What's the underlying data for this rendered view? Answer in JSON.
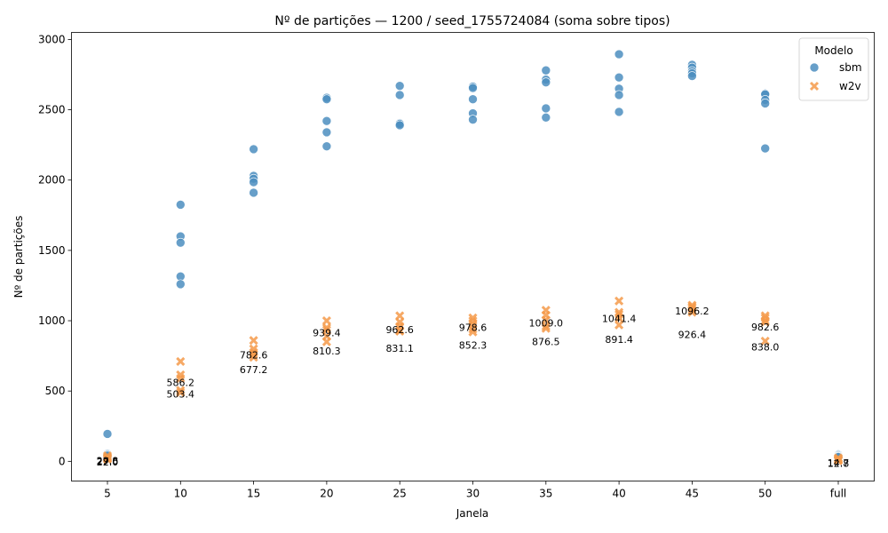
{
  "chart_data": {
    "type": "scatter",
    "title": "Nº de partições — 1200 / seed_1755724084 (soma sobre tipos)",
    "xlabel": "Janela",
    "ylabel": "Nº de partições",
    "x_categories": [
      "5",
      "10",
      "15",
      "20",
      "25",
      "30",
      "35",
      "40",
      "45",
      "50",
      "full"
    ],
    "ylim": [
      -140,
      3050
    ],
    "yticks": [
      0,
      500,
      1000,
      1500,
      2000,
      2500,
      3000
    ],
    "grid": false,
    "legend": {
      "title": "Modelo",
      "position": "top-right"
    },
    "series": [
      {
        "name": "sbm",
        "color": "#4c8ec0",
        "marker": "circle",
        "points": [
          [
            "5",
            195
          ],
          [
            "5",
            55
          ],
          [
            "5",
            50
          ],
          [
            "5",
            45
          ],
          [
            "5",
            40
          ],
          [
            "10",
            1825
          ],
          [
            "10",
            1600
          ],
          [
            "10",
            1555
          ],
          [
            "10",
            1315
          ],
          [
            "10",
            1260
          ],
          [
            "15",
            2220
          ],
          [
            "15",
            2030
          ],
          [
            "15",
            2010
          ],
          [
            "15",
            1985
          ],
          [
            "15",
            1910
          ],
          [
            "20",
            2585
          ],
          [
            "20",
            2575
          ],
          [
            "20",
            2420
          ],
          [
            "20",
            2340
          ],
          [
            "20",
            2240
          ],
          [
            "25",
            2670
          ],
          [
            "25",
            2605
          ],
          [
            "25",
            2405
          ],
          [
            "25",
            2400
          ],
          [
            "25",
            2390
          ],
          [
            "30",
            2665
          ],
          [
            "30",
            2655
          ],
          [
            "30",
            2575
          ],
          [
            "30",
            2475
          ],
          [
            "30",
            2430
          ],
          [
            "35",
            2780
          ],
          [
            "35",
            2715
          ],
          [
            "35",
            2695
          ],
          [
            "35",
            2510
          ],
          [
            "35",
            2445
          ],
          [
            "40",
            2895
          ],
          [
            "40",
            2730
          ],
          [
            "40",
            2650
          ],
          [
            "40",
            2605
          ],
          [
            "40",
            2485
          ],
          [
            "45",
            2820
          ],
          [
            "45",
            2800
          ],
          [
            "45",
            2775
          ],
          [
            "45",
            2760
          ],
          [
            "45",
            2740
          ],
          [
            "50",
            2615
          ],
          [
            "50",
            2610
          ],
          [
            "50",
            2570
          ],
          [
            "50",
            2545
          ],
          [
            "50",
            2225
          ],
          [
            "full",
            50
          ],
          [
            "full",
            45
          ],
          [
            "full",
            40
          ],
          [
            "full",
            35
          ],
          [
            "full",
            30
          ]
        ]
      },
      {
        "name": "w2v",
        "color": "#f59a4a",
        "marker": "x",
        "points": [
          [
            "5",
            40
          ],
          [
            "5",
            30
          ],
          [
            "5",
            25
          ],
          [
            "5",
            20
          ],
          [
            "5",
            15
          ],
          [
            "10",
            710
          ],
          [
            "10",
            615
          ],
          [
            "10",
            590
          ],
          [
            "10",
            505
          ],
          [
            "10",
            490
          ],
          [
            "15",
            860
          ],
          [
            "15",
            800
          ],
          [
            "15",
            775
          ],
          [
            "15",
            760
          ],
          [
            "15",
            740
          ],
          [
            "20",
            1000
          ],
          [
            "20",
            950
          ],
          [
            "20",
            935
          ],
          [
            "20",
            890
          ],
          [
            "20",
            850
          ],
          [
            "25",
            1035
          ],
          [
            "25",
            990
          ],
          [
            "25",
            960
          ],
          [
            "25",
            930
          ],
          [
            "25",
            925
          ],
          [
            "30",
            1020
          ],
          [
            "30",
            1000
          ],
          [
            "30",
            975
          ],
          [
            "30",
            940
          ],
          [
            "30",
            920
          ],
          [
            "35",
            1075
          ],
          [
            "35",
            1040
          ],
          [
            "35",
            1005
          ],
          [
            "35",
            960
          ],
          [
            "35",
            945
          ],
          [
            "40",
            1140
          ],
          [
            "40",
            1060
          ],
          [
            "40",
            1045
          ],
          [
            "40",
            1020
          ],
          [
            "40",
            970
          ],
          [
            "45",
            1110
          ],
          [
            "45",
            1100
          ],
          [
            "45",
            1090
          ],
          [
            "45",
            1075
          ],
          [
            "45",
            1060
          ],
          [
            "50",
            1035
          ],
          [
            "50",
            1020
          ],
          [
            "50",
            1000
          ],
          [
            "50",
            990
          ],
          [
            "50",
            855
          ],
          [
            "full",
            25
          ],
          [
            "full",
            18
          ],
          [
            "full",
            12
          ],
          [
            "full",
            8
          ],
          [
            "full",
            5
          ]
        ]
      }
    ],
    "annotations": [
      {
        "x": "5",
        "y": 27.6,
        "text": "27.6"
      },
      {
        "x": "5",
        "y": 29.8,
        "text": "29.8"
      },
      {
        "x": "5",
        "y": 22.0,
        "text": "22.0"
      },
      {
        "x": "10",
        "y": 586.2,
        "text": "586.2"
      },
      {
        "x": "10",
        "y": 503.4,
        "text": "503.4"
      },
      {
        "x": "15",
        "y": 782.6,
        "text": "782.6"
      },
      {
        "x": "15",
        "y": 677.2,
        "text": "677.2"
      },
      {
        "x": "20",
        "y": 939.4,
        "text": "939.4"
      },
      {
        "x": "20",
        "y": 810.3,
        "text": "810.3"
      },
      {
        "x": "25",
        "y": 962.6,
        "text": "962.6"
      },
      {
        "x": "25",
        "y": 831.1,
        "text": "831.1"
      },
      {
        "x": "30",
        "y": 978.6,
        "text": "978.6"
      },
      {
        "x": "30",
        "y": 852.3,
        "text": "852.3"
      },
      {
        "x": "35",
        "y": 1009.0,
        "text": "1009.0"
      },
      {
        "x": "35",
        "y": 876.5,
        "text": "876.5"
      },
      {
        "x": "40",
        "y": 1041.4,
        "text": "1041.4"
      },
      {
        "x": "40",
        "y": 891.4,
        "text": "891.4"
      },
      {
        "x": "45",
        "y": 1096.2,
        "text": "1096.2"
      },
      {
        "x": "45",
        "y": 926.4,
        "text": "926.4"
      },
      {
        "x": "50",
        "y": 982.6,
        "text": "982.6"
      },
      {
        "x": "50",
        "y": 838.0,
        "text": "838.0"
      },
      {
        "x": "full",
        "y": 14.7,
        "text": "14.7"
      },
      {
        "x": "full",
        "y": 12.8,
        "text": "12.8"
      }
    ]
  }
}
